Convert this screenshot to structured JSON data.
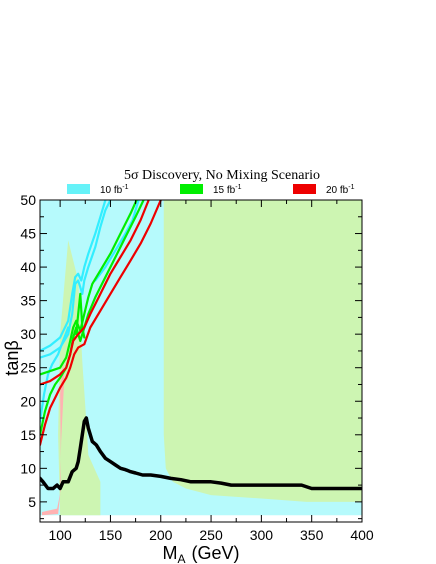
{
  "chart_data": {
    "type": "area",
    "title": "5σ Discovery, No Mixing Scenario",
    "xlabel": "M",
    "xlabel_sub": "A",
    "xlabel_unit": "(GeV)",
    "ylabel": "tanβ",
    "xlim": [
      80,
      400
    ],
    "ylim": [
      2,
      50
    ],
    "x_ticks": [
      100,
      150,
      200,
      250,
      300,
      350,
      400
    ],
    "y_ticks": [
      5,
      10,
      15,
      20,
      25,
      30,
      35,
      40,
      45,
      50
    ],
    "grid": false,
    "legend_position": "top",
    "legend": [
      {
        "label": "10 fb",
        "sup": "-1",
        "color": "#66f2f8"
      },
      {
        "label": "15 fb",
        "sup": "-1",
        "color": "#00ee00"
      },
      {
        "label": "20 fb",
        "sup": "-1",
        "color": "#ee0000"
      }
    ],
    "regions": [
      {
        "name": "cyan-region",
        "color": "#b6fafc",
        "polygon": [
          [
            80,
            3
          ],
          [
            400,
            3
          ],
          [
            400,
            50
          ],
          [
            80,
            50
          ]
        ]
      },
      {
        "name": "green-region-main",
        "color": "#cdf5b2",
        "polygon": [
          [
            203,
            50
          ],
          [
            400,
            50
          ],
          [
            400,
            5
          ],
          [
            345,
            5
          ],
          [
            300,
            5.5
          ],
          [
            250,
            6
          ],
          [
            225,
            7
          ],
          [
            212,
            8
          ],
          [
            205,
            10
          ],
          [
            203,
            15
          ],
          [
            203,
            30
          ]
        ]
      },
      {
        "name": "green-region-low-mass",
        "color": "#cdf5b2",
        "polygon": [
          [
            100,
            3
          ],
          [
            140,
            3
          ],
          [
            140,
            8
          ],
          [
            128,
            12
          ],
          [
            126,
            17
          ],
          [
            122,
            26
          ],
          [
            118,
            38
          ],
          [
            108,
            44
          ],
          [
            100,
            30
          ],
          [
            98,
            15
          ]
        ]
      },
      {
        "name": "pink-region",
        "color": "#ffb2b2",
        "polygon": [
          [
            82,
            3.5
          ],
          [
            97,
            4
          ],
          [
            101,
            7
          ],
          [
            100,
            21
          ],
          [
            103,
            26
          ],
          [
            104,
            23
          ],
          [
            101,
            14
          ],
          [
            100,
            6
          ],
          [
            98,
            3.2
          ],
          [
            82,
            3
          ]
        ]
      }
    ],
    "series": [
      {
        "name": "10 fb-1",
        "color": "#33eeff",
        "curves": [
          [
            [
              80,
              26.5
            ],
            [
              90,
              27
            ],
            [
              100,
              28
            ],
            [
              108,
              30
            ],
            [
              112,
              33
            ],
            [
              115,
              37.5
            ],
            [
              118,
              38
            ],
            [
              120,
              37
            ],
            [
              122,
              36
            ],
            [
              124,
              38
            ],
            [
              128,
              40
            ],
            [
              135,
              43
            ],
            [
              140,
              46
            ],
            [
              145,
              48.5
            ],
            [
              150,
              50
            ]
          ],
          [
            [
              80,
              27.5
            ],
            [
              90,
              28.3
            ],
            [
              100,
              29.5
            ],
            [
              108,
              32
            ],
            [
              112,
              36
            ],
            [
              115,
              38.5
            ],
            [
              118,
              39
            ],
            [
              121,
              38
            ],
            [
              124,
              40
            ],
            [
              128,
              42
            ],
            [
              135,
              45
            ],
            [
              140,
              47.5
            ],
            [
              145,
              50
            ]
          ],
          [
            [
              80,
              17
            ],
            [
              84,
              21
            ],
            [
              88,
              24
            ],
            [
              92,
              25.5
            ],
            [
              98,
              27
            ],
            [
              103,
              29
            ],
            [
              108,
              31
            ]
          ],
          [
            [
              135,
              38
            ],
            [
              145,
              40
            ],
            [
              155,
              42.5
            ],
            [
              165,
              45
            ],
            [
              172,
              47
            ],
            [
              178,
              50
            ]
          ]
        ]
      },
      {
        "name": "15 fb-1",
        "color": "#00ee00",
        "curves": [
          [
            [
              80,
              24
            ],
            [
              90,
              24.5
            ],
            [
              100,
              25
            ],
            [
              106,
              26.5
            ],
            [
              110,
              29
            ],
            [
              113,
              31
            ],
            [
              116,
              32
            ],
            [
              120,
              30.5
            ],
            [
              124,
              33
            ],
            [
              128,
              35.5
            ],
            [
              132,
              37.5
            ],
            [
              140,
              39.5
            ],
            [
              150,
              42
            ],
            [
              160,
              45
            ],
            [
              170,
              48
            ],
            [
              176,
              50
            ]
          ],
          [
            [
              80,
              15
            ],
            [
              85,
              18.5
            ],
            [
              90,
              21
            ],
            [
              95,
              22.5
            ],
            [
              100,
              23.5
            ],
            [
              106,
              25
            ],
            [
              110,
              27
            ],
            [
              113,
              29.5
            ],
            [
              116,
              31
            ],
            [
              120,
              29
            ],
            [
              124,
              31
            ],
            [
              128,
              33
            ],
            [
              135,
              35.5
            ],
            [
              145,
              38.5
            ],
            [
              155,
              41.5
            ],
            [
              165,
              44.5
            ],
            [
              175,
              47.5
            ],
            [
              183,
              50
            ]
          ],
          [
            [
              116,
              30
            ],
            [
              118,
              33
            ],
            [
              120,
              36
            ],
            [
              122,
              31
            ],
            [
              124,
              29.5
            ]
          ]
        ]
      },
      {
        "name": "20 fb-1",
        "color": "#ee0000",
        "curves": [
          [
            [
              80,
              22.5
            ],
            [
              90,
              23
            ],
            [
              100,
              24
            ],
            [
              106,
              25
            ],
            [
              110,
              27
            ],
            [
              113,
              29
            ],
            [
              118,
              30
            ],
            [
              124,
              31
            ],
            [
              130,
              33
            ],
            [
              140,
              36
            ],
            [
              150,
              39
            ],
            [
              160,
              41.5
            ],
            [
              170,
              44
            ],
            [
              180,
              47
            ],
            [
              188,
              50
            ]
          ],
          [
            [
              80,
              13.5
            ],
            [
              85,
              16.5
            ],
            [
              90,
              19
            ],
            [
              95,
              20.5
            ],
            [
              100,
              22
            ],
            [
              106,
              23.5
            ],
            [
              110,
              25
            ],
            [
              114,
              27
            ],
            [
              118,
              28
            ],
            [
              124,
              28.5
            ],
            [
              130,
              31
            ],
            [
              140,
              33.5
            ],
            [
              150,
              36
            ],
            [
              160,
              38.5
            ],
            [
              170,
              41
            ],
            [
              180,
              43.5
            ],
            [
              190,
              46.5
            ],
            [
              200,
              50
            ]
          ]
        ]
      },
      {
        "name": "boundary",
        "color": "#000000",
        "curves": [
          [
            [
              80,
              8.5
            ],
            [
              83,
              8
            ],
            [
              88,
              7
            ],
            [
              93,
              7
            ],
            [
              97,
              7.5
            ],
            [
              100,
              7
            ],
            [
              103,
              8
            ],
            [
              108,
              8
            ],
            [
              112,
              9.5
            ],
            [
              116,
              10
            ],
            [
              118,
              11
            ],
            [
              120,
              13
            ],
            [
              122,
              15
            ],
            [
              124,
              17
            ],
            [
              126,
              17.5
            ],
            [
              128,
              16
            ],
            [
              130,
              15
            ],
            [
              132,
              14
            ],
            [
              136,
              13.5
            ],
            [
              140,
              12.5
            ],
            [
              145,
              11.5
            ],
            [
              150,
              11
            ],
            [
              155,
              10.5
            ],
            [
              160,
              10
            ],
            [
              165,
              9.8
            ],
            [
              170,
              9.5
            ],
            [
              175,
              9.3
            ],
            [
              182,
              9
            ],
            [
              190,
              9
            ],
            [
              200,
              8.8
            ],
            [
              210,
              8.5
            ],
            [
              220,
              8.3
            ],
            [
              230,
              8
            ],
            [
              250,
              8
            ],
            [
              260,
              7.8
            ],
            [
              270,
              7.5
            ],
            [
              300,
              7.5
            ],
            [
              340,
              7.5
            ],
            [
              350,
              7
            ],
            [
              400,
              7
            ]
          ]
        ]
      }
    ]
  }
}
